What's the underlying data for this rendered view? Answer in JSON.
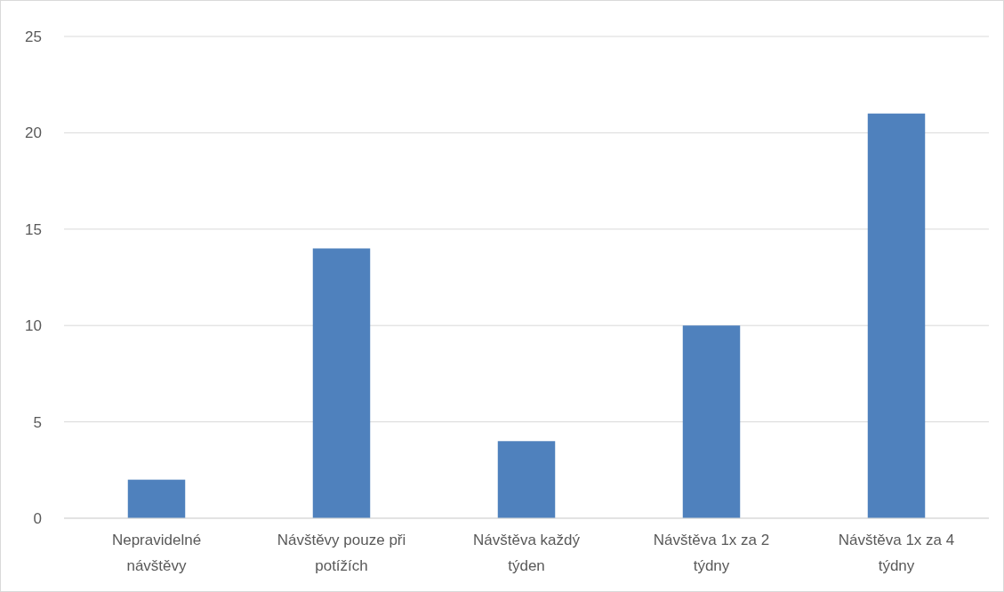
{
  "chart_data": {
    "type": "bar",
    "categories": [
      "Nepravidelné návštěvy",
      "Návštěvy pouze při potížích",
      "Návštěva každý týden",
      "Návštěva 1x za 2 týdny",
      "Návštěva 1x za 4 týdny"
    ],
    "values": [
      2,
      14,
      4,
      10,
      21
    ],
    "color": "#4f81bd",
    "ylim": [
      0,
      25
    ],
    "yticks": [
      0,
      5,
      10,
      15,
      20,
      25
    ],
    "grid": "y"
  }
}
